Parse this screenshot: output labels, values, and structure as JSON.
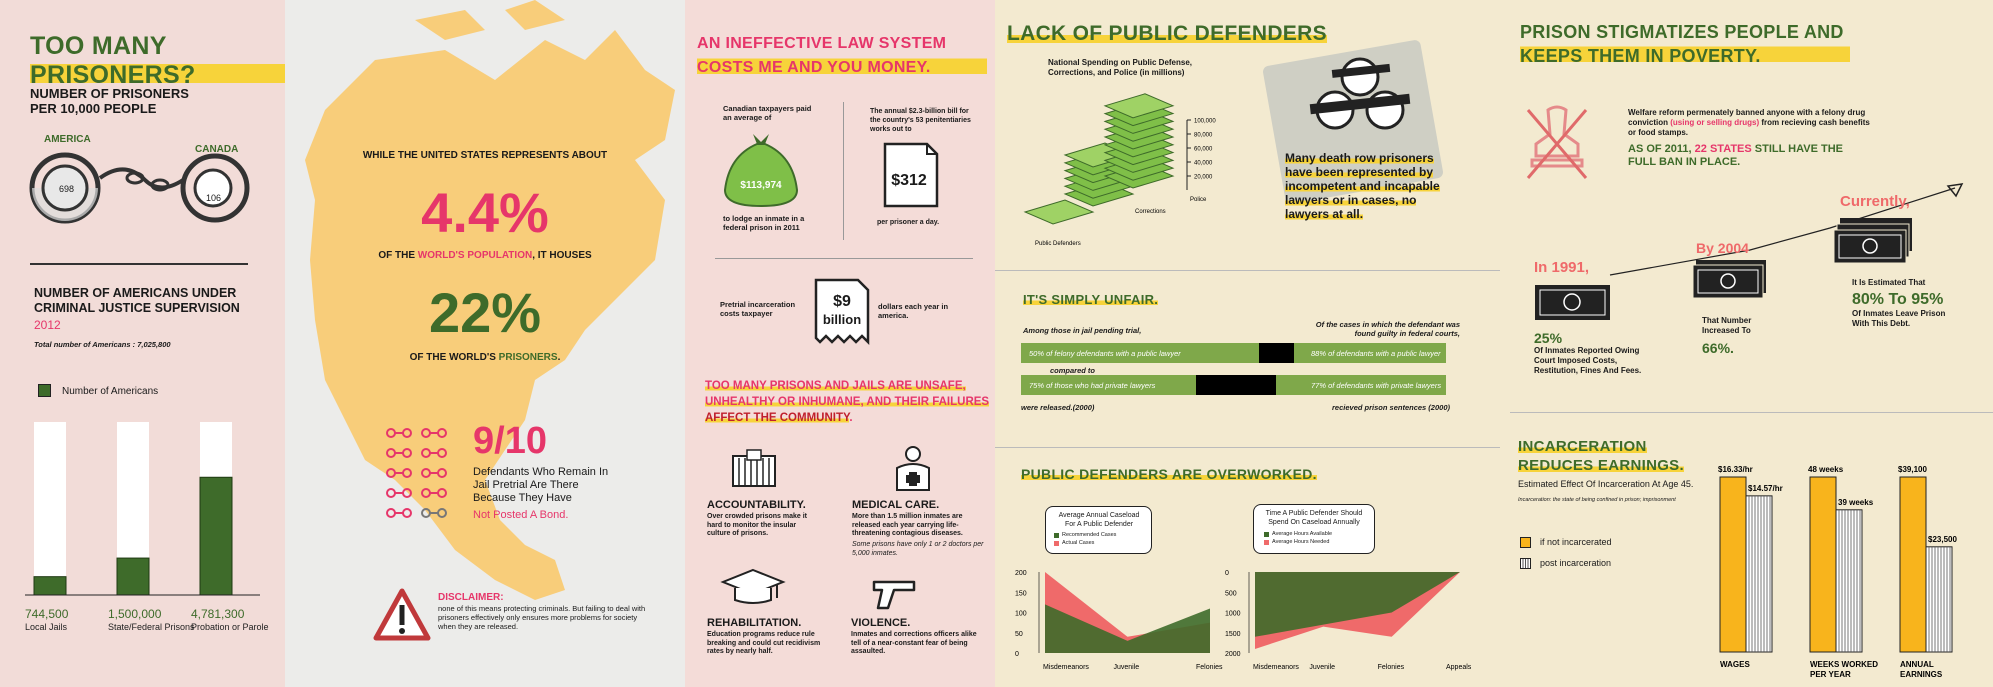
{
  "panel1": {
    "title": "TOO MANY PRISONERS?",
    "per_capita": {
      "heading": "NUMBER OF PRISONERS PER 10,000 PEOPLE",
      "america_label": "AMERICA",
      "canada_label": "CANADA",
      "america_value": "698",
      "canada_value": "106"
    },
    "supervision": {
      "heading": "NUMBER OF AMERICANS UNDER CRIMINAL JUSTICE SUPERVISION",
      "year": "2012",
      "total": "Total number of Americans : 7,025,800",
      "legend": "Number of Americans"
    }
  },
  "panel2": {
    "intro": "WHILE THE UNITED STATES REPRESENTS ABOUT",
    "stat1": "4.4%",
    "line1_a": "OF THE ",
    "line1_b": "WORLD'S POPULATION",
    "line1_c": ", IT HOUSES",
    "stat2": "22%",
    "line2_a": "OF THE WORLD'S ",
    "line2_b": "PRISONERS",
    "line2_c": ".",
    "stat3": "9/10",
    "stat3_text": "Defendants Who Remain In Jail Pretrial Are There Because They Have",
    "stat3_highlight": "Not Posted A Bond.",
    "disclaimer_title": "DISCLAIMER:",
    "disclaimer_text": "none of this means protecting criminals. But failing to deal with prisoners effectively only ensures more problems for society when they are released."
  },
  "panel3": {
    "title": "AN INEFFECTIVE LAW SYSTEM COSTS ME AND YOU MONEY.",
    "taxpayers_top": "Canadian taxpayers paid an average of",
    "taxpayers_value": "$113,974",
    "taxpayers_bottom": "to lodge an inmate in a federal prison in 2011",
    "bill_top": "The annual $2.3-billion bill for the country's 53 penitentiaries works out to",
    "bill_value": "$312",
    "bill_bottom": "per prisoner a day.",
    "pretrial_left": "Pretrial incarceration costs taxpayer",
    "pretrial_value_a": "$9",
    "pretrial_value_b": "billion",
    "pretrial_right": "dollars each year in america.",
    "unsafe_a": "TOO MANY PRISONS AND JAILS ARE UNSAFE, UNHEALTHY OR INHUMANE, AND THEIR FAILURES ",
    "unsafe_b": "AFFECT THE COMMUNITY",
    "unsafe_c": ".",
    "acc_title": "ACCOUNTABILITY.",
    "acc_text": "Over crowded prisons make it hard to monitor the insular culture of prisons.",
    "med_title": "MEDICAL CARE.",
    "med_text": "More than 1.5 million inmates are released each year carrying life-threatening contagious diseases.",
    "med_italic": "Some prisons have only 1 or 2 doctors per 5,000 inmates.",
    "rehab_title": "REHABILITATION.",
    "rehab_text": "Education programs reduce rule breaking and could cut recidivism rates by nearly half.",
    "vio_title": "VIOLENCE.",
    "vio_text": "Inmates and corrections officers alike tell of a near-constant fear of being assaulted."
  },
  "panel4": {
    "title": "LACK OF PUBLIC DEFENDERS",
    "spending_heading": "National Spending on Public Defense, Corrections, and Police (in millions)",
    "death_row": "Many death row prisoners have been represented by incompetent and incapable lawyers or in cases, no lawyers at all.",
    "unfair_title": "IT'S SIMPLY UNFAIR.",
    "unfair_left_head": "Among those in jail pending trial,",
    "unfair_right_head": "Of the cases in which the defendant was found guilty in federal courts,",
    "unfair_bar1_left": "50% of felony defendants with a public lawyer",
    "unfair_bar1_right": "88% of defendants with a public lawyer",
    "unfair_compared": "compared to",
    "unfair_bar2_left": "75% of those who had private lawyers",
    "unfair_bar2_right": "77% of defendants with private lawyers",
    "unfair_foot_left": "were released.(2000)",
    "unfair_foot_right": "recieved prison sentences (2000)",
    "overworked_title": "PUBLIC DEFENDERS ARE OVERWORKED.",
    "bubble1_title": "Average Annual Caseload For A Public Defender",
    "bubble1_leg1": "Recommended Cases",
    "bubble1_leg2": "Actual Cases",
    "bubble2_title": "Time A Public Defender Should Spend On Caseload Annually",
    "bubble2_leg1": "Average Hours Available",
    "bubble2_leg2": "Average Hours Needed"
  },
  "panel5": {
    "title": "PRISON STIGMATIZES PEOPLE AND KEEPS THEM IN POVERTY.",
    "welfare_a": "Welfare reform permenately banned anyone with a felony drug conviction ",
    "welfare_b": "(using or selling drugs)",
    "welfare_c": " from recieving cash benefits or food stamps.",
    "as_of_a": "AS OF 2011, ",
    "as_of_b": "22 STATES",
    "as_of_c": " STILL HAVE THE FULL BAN IN PLACE.",
    "y1991": "In 1991,",
    "pct25": "25%",
    "pct25_text": "Of Inmates Reported Owing Court Imposed Costs, Restitution, Fines And Fees.",
    "by2004": "By 2004",
    "pct66_text": "That Number Increased To",
    "pct66": "66%.",
    "currently": "Currently,",
    "est_text": "It Is Estimated That",
    "pct80": "80% To 95%",
    "est_text2": "Of Inmates Leave Prison With This Debt.",
    "earn_title": "INCARCERATION REDUCES EARNINGS.",
    "earn_sub": "Estimated Effect Of Incarceration At Age 45.",
    "earn_note": "Incarceration: the state of being confined in prison; imprisonment",
    "legend_a": "if not incarcerated",
    "legend_b": "post incarceration"
  },
  "chart_data": [
    {
      "type": "bar",
      "title": "NUMBER OF AMERICANS UNDER CRIMINAL JUSTICE SUPERVISION",
      "categories": [
        "Local Jails",
        "State/Federal Prisons",
        "Probation or Parole"
      ],
      "value_labels": [
        "744,500",
        "1,500,000",
        "4,781,300"
      ],
      "values": [
        744500,
        1500000,
        4781300
      ],
      "ylim": [
        0,
        7025800
      ],
      "legend": "Number of Americans"
    },
    {
      "type": "bar",
      "title": "National Spending on Public Defense, Corrections, and Police (in millions)",
      "categories": [
        "Public Defenders",
        "Corrections",
        "Police"
      ],
      "ticks": [
        "100,000",
        "80,000",
        "60,000",
        "40,000",
        "20,000"
      ],
      "values": [
        4000,
        60000,
        100000
      ],
      "ylim": [
        0,
        100000
      ]
    },
    {
      "type": "area",
      "title": "Average Annual Caseload For A Public Defender",
      "categories": [
        "Misdemeanors",
        "Juvenile",
        "Felonies"
      ],
      "ticks": [
        "200",
        "150",
        "100",
        "50",
        "0"
      ],
      "series": [
        {
          "name": "Recommended Cases",
          "values": [
            120,
            30,
            110
          ]
        },
        {
          "name": "Actual Cases",
          "values": [
            200,
            40,
            75
          ]
        }
      ],
      "ylim": [
        0,
        200
      ]
    },
    {
      "type": "area",
      "title": "Time A Public Defender Should Spend On Caseload Annually",
      "categories": [
        "Misdemeanors",
        "Juvenile",
        "Felonies",
        "Appeals"
      ],
      "ticks": [
        "0",
        "500",
        "1000",
        "1500",
        "2000"
      ],
      "series": [
        {
          "name": "Average Hours Available",
          "values": [
            1600,
            1300,
            1000,
            0
          ]
        },
        {
          "name": "Average Hours Needed",
          "values": [
            1900,
            1350,
            1600,
            0
          ]
        }
      ],
      "ylim": [
        0,
        2000
      ]
    },
    {
      "type": "bar",
      "title": "INCARCERATION REDUCES EARNINGS.",
      "categories": [
        "WAGES",
        "WEEKS WORKED PER YEAR",
        "ANNUAL EARNINGS"
      ],
      "series": [
        {
          "name": "if not incarcerated",
          "values": [
            16.33,
            48,
            39100
          ],
          "labels": [
            "$16.33/hr",
            "48 weeks",
            "$39,100"
          ]
        },
        {
          "name": "post incarceration",
          "values": [
            14.57,
            39,
            23500
          ],
          "labels": [
            "$14.57/hr",
            "39 weeks",
            "$23,500"
          ]
        }
      ]
    }
  ]
}
